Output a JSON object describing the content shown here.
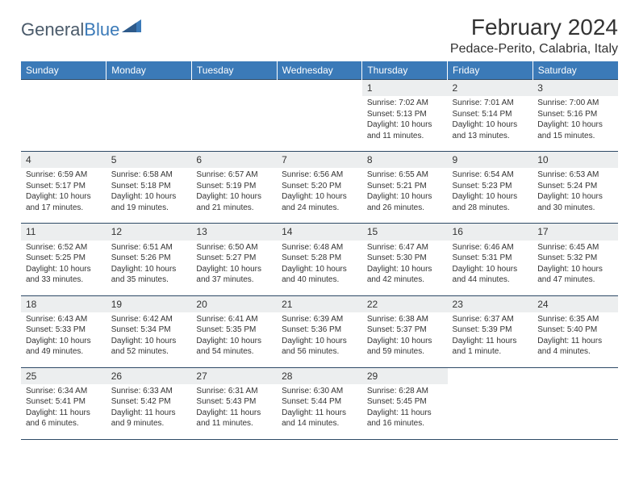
{
  "logo": {
    "part1": "General",
    "part2": "Blue"
  },
  "title": "February 2024",
  "location": "Pedace-Perito, Calabria, Italy",
  "colors": {
    "header_bg": "#3b7ab8",
    "header_text": "#ffffff",
    "daynum_bg": "#eceeef",
    "divider": "#2e4a66",
    "text": "#333333"
  },
  "day_headers": [
    "Sunday",
    "Monday",
    "Tuesday",
    "Wednesday",
    "Thursday",
    "Friday",
    "Saturday"
  ],
  "weeks": [
    [
      null,
      null,
      null,
      null,
      {
        "n": "1",
        "sr": "Sunrise: 7:02 AM",
        "ss": "Sunset: 5:13 PM",
        "dl1": "Daylight: 10 hours",
        "dl2": "and 11 minutes."
      },
      {
        "n": "2",
        "sr": "Sunrise: 7:01 AM",
        "ss": "Sunset: 5:14 PM",
        "dl1": "Daylight: 10 hours",
        "dl2": "and 13 minutes."
      },
      {
        "n": "3",
        "sr": "Sunrise: 7:00 AM",
        "ss": "Sunset: 5:16 PM",
        "dl1": "Daylight: 10 hours",
        "dl2": "and 15 minutes."
      }
    ],
    [
      {
        "n": "4",
        "sr": "Sunrise: 6:59 AM",
        "ss": "Sunset: 5:17 PM",
        "dl1": "Daylight: 10 hours",
        "dl2": "and 17 minutes."
      },
      {
        "n": "5",
        "sr": "Sunrise: 6:58 AM",
        "ss": "Sunset: 5:18 PM",
        "dl1": "Daylight: 10 hours",
        "dl2": "and 19 minutes."
      },
      {
        "n": "6",
        "sr": "Sunrise: 6:57 AM",
        "ss": "Sunset: 5:19 PM",
        "dl1": "Daylight: 10 hours",
        "dl2": "and 21 minutes."
      },
      {
        "n": "7",
        "sr": "Sunrise: 6:56 AM",
        "ss": "Sunset: 5:20 PM",
        "dl1": "Daylight: 10 hours",
        "dl2": "and 24 minutes."
      },
      {
        "n": "8",
        "sr": "Sunrise: 6:55 AM",
        "ss": "Sunset: 5:21 PM",
        "dl1": "Daylight: 10 hours",
        "dl2": "and 26 minutes."
      },
      {
        "n": "9",
        "sr": "Sunrise: 6:54 AM",
        "ss": "Sunset: 5:23 PM",
        "dl1": "Daylight: 10 hours",
        "dl2": "and 28 minutes."
      },
      {
        "n": "10",
        "sr": "Sunrise: 6:53 AM",
        "ss": "Sunset: 5:24 PM",
        "dl1": "Daylight: 10 hours",
        "dl2": "and 30 minutes."
      }
    ],
    [
      {
        "n": "11",
        "sr": "Sunrise: 6:52 AM",
        "ss": "Sunset: 5:25 PM",
        "dl1": "Daylight: 10 hours",
        "dl2": "and 33 minutes."
      },
      {
        "n": "12",
        "sr": "Sunrise: 6:51 AM",
        "ss": "Sunset: 5:26 PM",
        "dl1": "Daylight: 10 hours",
        "dl2": "and 35 minutes."
      },
      {
        "n": "13",
        "sr": "Sunrise: 6:50 AM",
        "ss": "Sunset: 5:27 PM",
        "dl1": "Daylight: 10 hours",
        "dl2": "and 37 minutes."
      },
      {
        "n": "14",
        "sr": "Sunrise: 6:48 AM",
        "ss": "Sunset: 5:28 PM",
        "dl1": "Daylight: 10 hours",
        "dl2": "and 40 minutes."
      },
      {
        "n": "15",
        "sr": "Sunrise: 6:47 AM",
        "ss": "Sunset: 5:30 PM",
        "dl1": "Daylight: 10 hours",
        "dl2": "and 42 minutes."
      },
      {
        "n": "16",
        "sr": "Sunrise: 6:46 AM",
        "ss": "Sunset: 5:31 PM",
        "dl1": "Daylight: 10 hours",
        "dl2": "and 44 minutes."
      },
      {
        "n": "17",
        "sr": "Sunrise: 6:45 AM",
        "ss": "Sunset: 5:32 PM",
        "dl1": "Daylight: 10 hours",
        "dl2": "and 47 minutes."
      }
    ],
    [
      {
        "n": "18",
        "sr": "Sunrise: 6:43 AM",
        "ss": "Sunset: 5:33 PM",
        "dl1": "Daylight: 10 hours",
        "dl2": "and 49 minutes."
      },
      {
        "n": "19",
        "sr": "Sunrise: 6:42 AM",
        "ss": "Sunset: 5:34 PM",
        "dl1": "Daylight: 10 hours",
        "dl2": "and 52 minutes."
      },
      {
        "n": "20",
        "sr": "Sunrise: 6:41 AM",
        "ss": "Sunset: 5:35 PM",
        "dl1": "Daylight: 10 hours",
        "dl2": "and 54 minutes."
      },
      {
        "n": "21",
        "sr": "Sunrise: 6:39 AM",
        "ss": "Sunset: 5:36 PM",
        "dl1": "Daylight: 10 hours",
        "dl2": "and 56 minutes."
      },
      {
        "n": "22",
        "sr": "Sunrise: 6:38 AM",
        "ss": "Sunset: 5:37 PM",
        "dl1": "Daylight: 10 hours",
        "dl2": "and 59 minutes."
      },
      {
        "n": "23",
        "sr": "Sunrise: 6:37 AM",
        "ss": "Sunset: 5:39 PM",
        "dl1": "Daylight: 11 hours",
        "dl2": "and 1 minute."
      },
      {
        "n": "24",
        "sr": "Sunrise: 6:35 AM",
        "ss": "Sunset: 5:40 PM",
        "dl1": "Daylight: 11 hours",
        "dl2": "and 4 minutes."
      }
    ],
    [
      {
        "n": "25",
        "sr": "Sunrise: 6:34 AM",
        "ss": "Sunset: 5:41 PM",
        "dl1": "Daylight: 11 hours",
        "dl2": "and 6 minutes."
      },
      {
        "n": "26",
        "sr": "Sunrise: 6:33 AM",
        "ss": "Sunset: 5:42 PM",
        "dl1": "Daylight: 11 hours",
        "dl2": "and 9 minutes."
      },
      {
        "n": "27",
        "sr": "Sunrise: 6:31 AM",
        "ss": "Sunset: 5:43 PM",
        "dl1": "Daylight: 11 hours",
        "dl2": "and 11 minutes."
      },
      {
        "n": "28",
        "sr": "Sunrise: 6:30 AM",
        "ss": "Sunset: 5:44 PM",
        "dl1": "Daylight: 11 hours",
        "dl2": "and 14 minutes."
      },
      {
        "n": "29",
        "sr": "Sunrise: 6:28 AM",
        "ss": "Sunset: 5:45 PM",
        "dl1": "Daylight: 11 hours",
        "dl2": "and 16 minutes."
      },
      null,
      null
    ]
  ]
}
